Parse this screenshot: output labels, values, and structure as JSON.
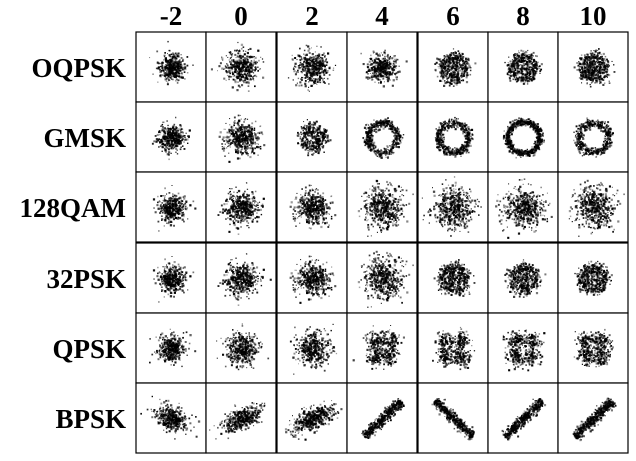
{
  "columns": [
    "-2",
    "0",
    "2",
    "4",
    "6",
    "8",
    "10"
  ],
  "rows": [
    {
      "label": "OQPSK",
      "pattern": [
        "blob-small",
        "blob",
        "blob",
        "blob-ring-faint",
        "ring-cluster",
        "ring-cluster",
        "ring-cluster"
      ]
    },
    {
      "label": "GMSK",
      "pattern": [
        "blob-small",
        "blob",
        "ring-faint",
        "ring",
        "ring",
        "ring-strong",
        "ring"
      ]
    },
    {
      "label": "128QAM",
      "pattern": [
        "blob-small",
        "blob",
        "blob",
        "blob-wide",
        "blob-wide",
        "blob-wide",
        "blob-wide"
      ]
    },
    {
      "label": "32PSK",
      "pattern": [
        "blob-small",
        "blob",
        "blob",
        "blob-wide",
        "ring-cluster",
        "ring-cluster",
        "ring-cluster"
      ]
    },
    {
      "label": "QPSK",
      "pattern": [
        "blob-small",
        "blob",
        "blob",
        "clusters-4",
        "clusters-4",
        "clusters-4",
        "clusters-4"
      ]
    },
    {
      "label": "BPSK",
      "pattern": [
        "blob-tilt",
        "ellipse",
        "ellipse",
        "line",
        "line-neg",
        "line",
        "line"
      ]
    }
  ],
  "colors": {
    "ink": "#000000",
    "background": "#ffffff"
  }
}
